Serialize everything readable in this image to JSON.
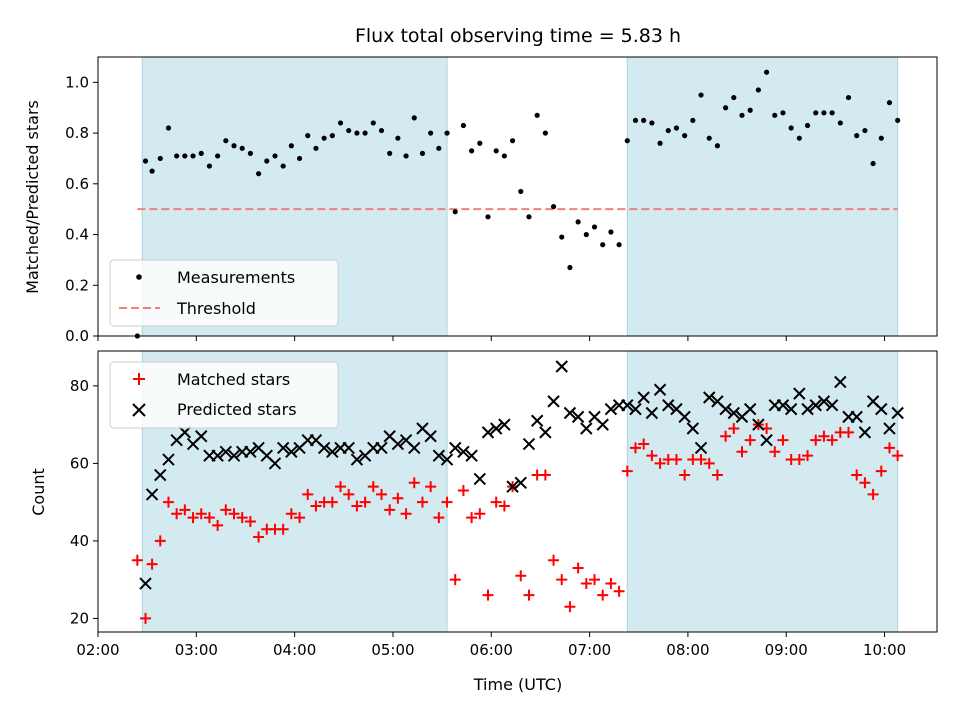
{
  "figure": {
    "title": "Flux total observing time = 5.83 h",
    "xlabel": "Time (UTC)"
  },
  "chart_data": [
    {
      "type": "scatter",
      "panel": "top",
      "ylabel": "Matched/Predicted stars",
      "xlim": [
        "02:00",
        "10:32"
      ],
      "ylim": [
        0,
        1.1
      ],
      "yticks": [
        "0.0",
        "0.2",
        "0.4",
        "0.6",
        "0.8",
        "1.0"
      ],
      "grid": false,
      "legend_position": "lower-left",
      "shaded_intervals": [
        [
          "02:27",
          "05:33"
        ],
        [
          "07:23",
          "10:08"
        ]
      ],
      "shade_color": "#d4eaf1",
      "series": [
        {
          "name": "Measurements",
          "color": "#000000",
          "marker": "dot",
          "x": [
            "02:24",
            "02:29",
            "02:33",
            "02:38",
            "02:43",
            "02:48",
            "02:53",
            "02:58",
            "03:03",
            "03:08",
            "03:13",
            "03:18",
            "03:23",
            "03:28",
            "03:33",
            "03:38",
            "03:43",
            "03:48",
            "03:53",
            "03:58",
            "04:03",
            "04:08",
            "04:13",
            "04:18",
            "04:23",
            "04:28",
            "04:33",
            "04:38",
            "04:43",
            "04:48",
            "04:53",
            "04:58",
            "05:03",
            "05:08",
            "05:13",
            "05:18",
            "05:23",
            "05:28",
            "05:33",
            "05:38",
            "05:43",
            "05:48",
            "05:53",
            "05:58",
            "06:03",
            "06:08",
            "06:13",
            "06:18",
            "06:23",
            "06:28",
            "06:33",
            "06:38",
            "06:43",
            "06:48",
            "06:53",
            "06:58",
            "07:03",
            "07:08",
            "07:13",
            "07:18",
            "07:23",
            "07:28",
            "07:33",
            "07:38",
            "07:43",
            "07:48",
            "07:53",
            "07:58",
            "08:03",
            "08:08",
            "08:13",
            "08:18",
            "08:23",
            "08:28",
            "08:33",
            "08:38",
            "08:43",
            "08:48",
            "08:53",
            "08:58",
            "09:03",
            "09:08",
            "09:13",
            "09:18",
            "09:23",
            "09:28",
            "09:33",
            "09:38",
            "09:43",
            "09:48",
            "09:53",
            "09:58",
            "10:03",
            "10:08"
          ],
          "y": [
            0.0,
            0.69,
            0.65,
            0.7,
            0.82,
            0.71,
            0.71,
            0.71,
            0.72,
            0.67,
            0.71,
            0.77,
            0.75,
            0.74,
            0.72,
            0.64,
            0.69,
            0.71,
            0.67,
            0.75,
            0.7,
            0.79,
            0.74,
            0.78,
            0.79,
            0.84,
            0.81,
            0.8,
            0.8,
            0.84,
            0.81,
            0.72,
            0.78,
            0.71,
            0.86,
            0.72,
            0.8,
            0.74,
            0.8,
            0.49,
            0.83,
            0.73,
            0.76,
            0.47,
            0.73,
            0.71,
            0.77,
            0.57,
            0.47,
            0.87,
            0.8,
            0.51,
            0.39,
            0.27,
            0.45,
            0.4,
            0.43,
            0.36,
            0.41,
            0.36,
            0.77,
            0.85,
            0.85,
            0.84,
            0.76,
            0.81,
            0.82,
            0.79,
            0.85,
            0.95,
            0.78,
            0.75,
            0.9,
            0.94,
            0.87,
            0.89,
            0.97,
            1.04,
            0.87,
            0.88,
            0.82,
            0.78,
            0.83,
            0.88,
            0.88,
            0.88,
            0.84,
            0.94,
            0.79,
            0.81,
            0.68,
            0.78,
            0.92,
            0.85
          ]
        },
        {
          "name": "Threshold",
          "color": "#f08080",
          "style": "dashed",
          "x": [
            "02:24",
            "10:08"
          ],
          "y": [
            0.5,
            0.5
          ]
        }
      ]
    },
    {
      "type": "scatter",
      "panel": "bottom",
      "ylabel": "Count",
      "xlabel": "Time (UTC)",
      "xlim": [
        "02:00",
        "10:32"
      ],
      "ylim": [
        16.5,
        89
      ],
      "xticks": [
        "02:00",
        "03:00",
        "04:00",
        "05:00",
        "06:00",
        "07:00",
        "08:00",
        "09:00",
        "10:00"
      ],
      "yticks": [
        "20",
        "40",
        "60",
        "80"
      ],
      "grid": false,
      "legend_position": "upper-left",
      "shaded_intervals": [
        [
          "02:27",
          "05:33"
        ],
        [
          "07:23",
          "10:08"
        ]
      ],
      "shade_color": "#d4eaf1",
      "series": [
        {
          "name": "Matched stars",
          "color": "#ff0000",
          "marker": "+",
          "x": [
            "02:24",
            "02:29",
            "02:33",
            "02:38",
            "02:43",
            "02:48",
            "02:53",
            "02:58",
            "03:03",
            "03:08",
            "03:13",
            "03:18",
            "03:23",
            "03:28",
            "03:33",
            "03:38",
            "03:43",
            "03:48",
            "03:53",
            "03:58",
            "04:03",
            "04:08",
            "04:13",
            "04:18",
            "04:23",
            "04:28",
            "04:33",
            "04:38",
            "04:43",
            "04:48",
            "04:53",
            "04:58",
            "05:03",
            "05:08",
            "05:13",
            "05:18",
            "05:23",
            "05:28",
            "05:33",
            "05:38",
            "05:43",
            "05:48",
            "05:53",
            "05:58",
            "06:03",
            "06:08",
            "06:13",
            "06:18",
            "06:23",
            "06:28",
            "06:33",
            "06:38",
            "06:43",
            "06:48",
            "06:53",
            "06:58",
            "07:03",
            "07:08",
            "07:13",
            "07:18",
            "07:23",
            "07:28",
            "07:33",
            "07:38",
            "07:43",
            "07:48",
            "07:53",
            "07:58",
            "08:03",
            "08:08",
            "08:13",
            "08:18",
            "08:23",
            "08:28",
            "08:33",
            "08:38",
            "08:43",
            "08:48",
            "08:53",
            "08:58",
            "09:03",
            "09:08",
            "09:13",
            "09:18",
            "09:23",
            "09:28",
            "09:33",
            "09:38",
            "09:43",
            "09:48",
            "09:53",
            "09:58",
            "10:03",
            "10:08"
          ],
          "y": [
            35,
            20,
            34,
            40,
            50,
            47,
            48,
            46,
            47,
            46,
            44,
            48,
            47,
            46,
            45,
            41,
            43,
            43,
            43,
            47,
            46,
            52,
            49,
            50,
            50,
            54,
            52,
            49,
            50,
            54,
            52,
            48,
            51,
            47,
            55,
            50,
            54,
            46,
            50,
            30,
            53,
            46,
            47,
            26,
            50,
            49,
            54,
            31,
            26,
            57,
            57,
            35,
            30,
            23,
            33,
            29,
            30,
            26,
            29,
            27,
            58,
            64,
            65,
            62,
            60,
            61,
            61,
            57,
            61,
            61,
            60,
            57,
            67,
            69,
            63,
            66,
            70,
            69,
            63,
            66,
            61,
            61,
            62,
            66,
            67,
            66,
            68,
            68,
            57,
            55,
            52,
            58,
            64,
            62
          ]
        },
        {
          "name": "Predicted stars",
          "color": "#000000",
          "marker": "x",
          "x": [
            "02:29",
            "02:33",
            "02:38",
            "02:43",
            "02:48",
            "02:53",
            "02:58",
            "03:03",
            "03:08",
            "03:13",
            "03:18",
            "03:23",
            "03:28",
            "03:33",
            "03:38",
            "03:43",
            "03:48",
            "03:53",
            "03:58",
            "04:03",
            "04:08",
            "04:13",
            "04:18",
            "04:23",
            "04:28",
            "04:33",
            "04:38",
            "04:43",
            "04:48",
            "04:53",
            "04:58",
            "05:03",
            "05:08",
            "05:13",
            "05:18",
            "05:23",
            "05:28",
            "05:33",
            "05:38",
            "05:43",
            "05:48",
            "05:53",
            "05:58",
            "06:03",
            "06:08",
            "06:13",
            "06:18",
            "06:23",
            "06:28",
            "06:33",
            "06:38",
            "06:43",
            "06:48",
            "06:53",
            "06:58",
            "07:03",
            "07:08",
            "07:13",
            "07:18",
            "07:23",
            "07:28",
            "07:33",
            "07:38",
            "07:43",
            "07:48",
            "07:53",
            "07:58",
            "08:03",
            "08:08",
            "08:13",
            "08:18",
            "08:23",
            "08:28",
            "08:33",
            "08:38",
            "08:43",
            "08:48",
            "08:53",
            "08:58",
            "09:03",
            "09:08",
            "09:13",
            "09:18",
            "09:23",
            "09:28",
            "09:33",
            "09:38",
            "09:43",
            "09:48",
            "09:53",
            "09:58",
            "10:03",
            "10:08"
          ],
          "y": [
            29,
            52,
            57,
            61,
            66,
            68,
            65,
            67,
            62,
            62,
            63,
            62,
            63,
            63,
            64,
            62,
            60,
            64,
            63,
            64,
            66,
            66,
            64,
            63,
            64,
            64,
            61,
            62,
            64,
            64,
            67,
            65,
            66,
            64,
            69,
            67,
            62,
            61,
            64,
            63,
            62,
            56,
            68,
            69,
            70,
            54,
            55,
            65,
            71,
            68,
            76,
            85,
            73,
            72,
            69,
            72,
            70,
            74,
            75,
            75,
            74,
            77,
            73,
            79,
            75,
            74,
            72,
            69,
            64,
            77,
            76,
            74,
            73,
            72,
            74,
            70,
            66,
            75,
            75,
            74,
            78,
            74,
            75,
            76,
            75,
            81,
            72,
            72,
            68,
            76,
            74,
            69,
            73
          ]
        }
      ]
    }
  ]
}
